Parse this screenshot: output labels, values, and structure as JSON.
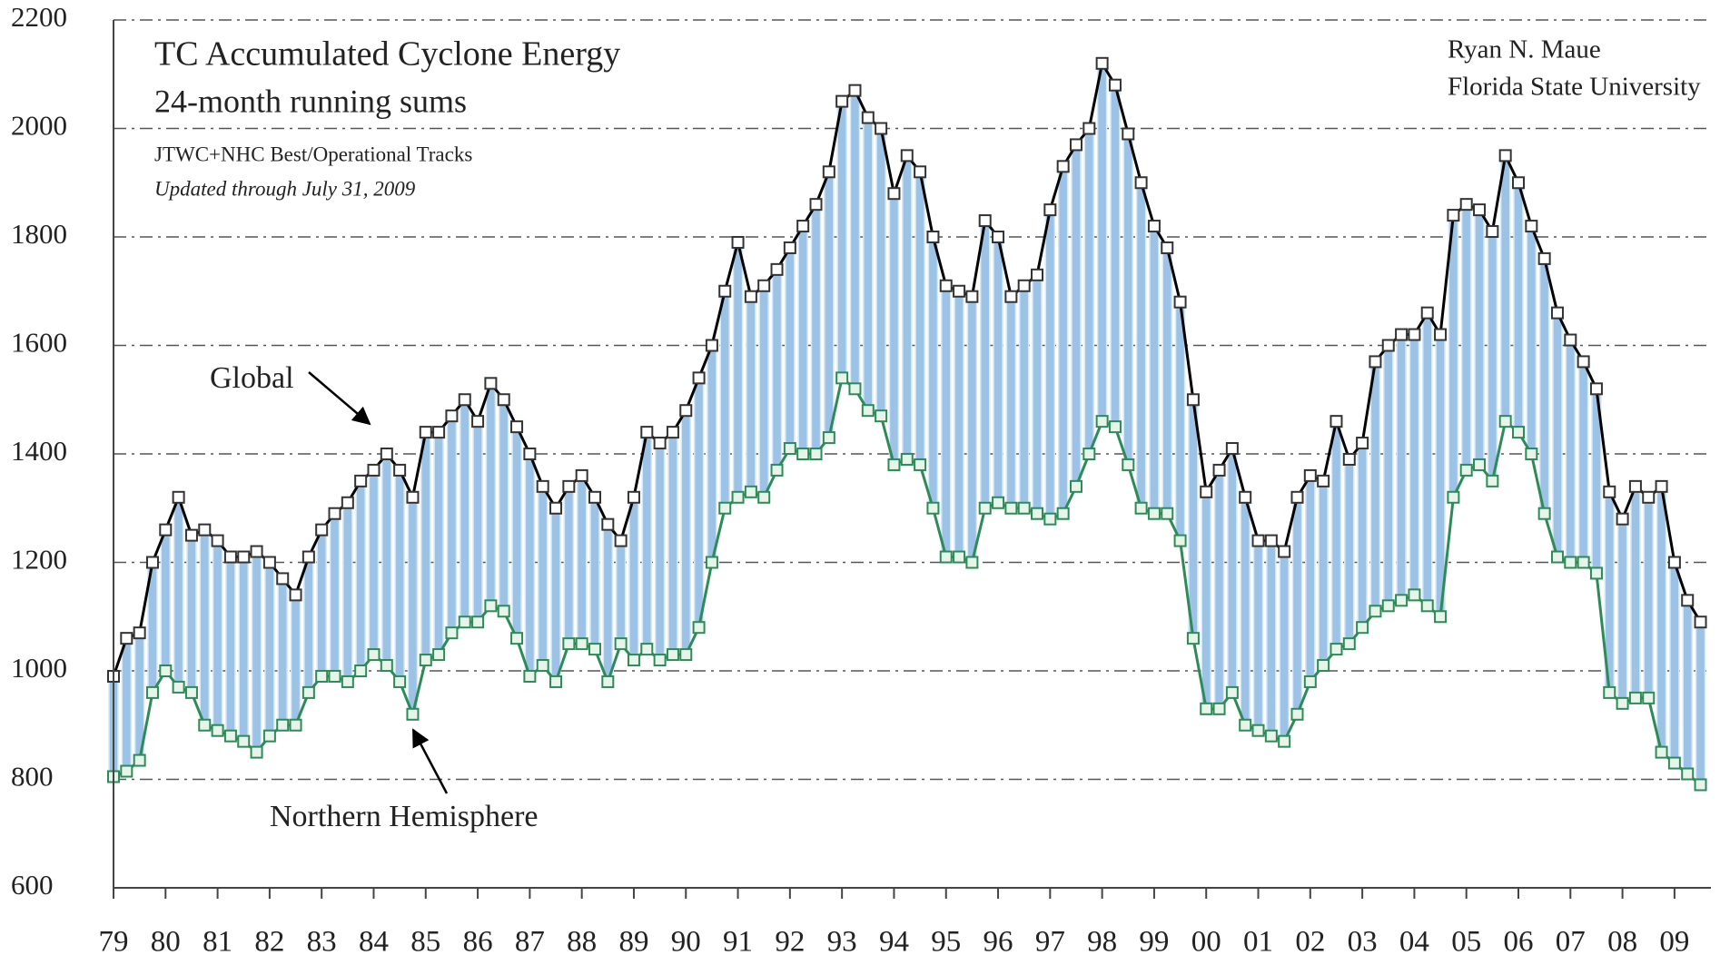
{
  "chart_data": {
    "type": "line",
    "title": "TC Accumulated Cyclone Energy",
    "subtitle": "24-month running sums",
    "notes": [
      "JTWC+NHC Best/Operational Tracks",
      "Updated through July 31, 2009"
    ],
    "author": [
      "Ryan N. Maue",
      "Florida State University"
    ],
    "annotations": [
      "Global",
      "Northern Hemisphere"
    ],
    "fill_color": "#9cc3e6",
    "grid": true,
    "xlim": [
      1979,
      2009.7
    ],
    "ylim": [
      600,
      2200
    ],
    "yticks": [
      600,
      800,
      1000,
      1200,
      1400,
      1600,
      1800,
      2000,
      2200
    ],
    "xticks": [
      {
        "value": 1979,
        "label": "79"
      },
      {
        "value": 1980,
        "label": "80"
      },
      {
        "value": 1981,
        "label": "81"
      },
      {
        "value": 1982,
        "label": "82"
      },
      {
        "value": 1983,
        "label": "83"
      },
      {
        "value": 1984,
        "label": "84"
      },
      {
        "value": 1985,
        "label": "85"
      },
      {
        "value": 1986,
        "label": "86"
      },
      {
        "value": 1987,
        "label": "87"
      },
      {
        "value": 1988,
        "label": "88"
      },
      {
        "value": 1989,
        "label": "89"
      },
      {
        "value": 1990,
        "label": "90"
      },
      {
        "value": 1991,
        "label": "91"
      },
      {
        "value": 1992,
        "label": "92"
      },
      {
        "value": 1993,
        "label": "93"
      },
      {
        "value": 1994,
        "label": "94"
      },
      {
        "value": 1995,
        "label": "95"
      },
      {
        "value": 1996,
        "label": "96"
      },
      {
        "value": 1997,
        "label": "97"
      },
      {
        "value": 1998,
        "label": "98"
      },
      {
        "value": 1999,
        "label": "99"
      },
      {
        "value": 2000,
        "label": "00"
      },
      {
        "value": 2001,
        "label": "01"
      },
      {
        "value": 2002,
        "label": "02"
      },
      {
        "value": 2003,
        "label": "03"
      },
      {
        "value": 2004,
        "label": "04"
      },
      {
        "value": 2005,
        "label": "05"
      },
      {
        "value": 2006,
        "label": "06"
      },
      {
        "value": 2007,
        "label": "07"
      },
      {
        "value": 2008,
        "label": "08"
      },
      {
        "value": 2009,
        "label": "09"
      }
    ],
    "x": [
      1979,
      1979.25,
      1979.5,
      1979.75,
      1980,
      1980.25,
      1980.5,
      1980.75,
      1981,
      1981.25,
      1981.5,
      1981.75,
      1982,
      1982.25,
      1982.5,
      1982.75,
      1983,
      1983.25,
      1983.5,
      1983.75,
      1984,
      1984.25,
      1984.5,
      1984.75,
      1985,
      1985.25,
      1985.5,
      1985.75,
      1986,
      1986.25,
      1986.5,
      1986.75,
      1987,
      1987.25,
      1987.5,
      1987.75,
      1988,
      1988.25,
      1988.5,
      1988.75,
      1989,
      1989.25,
      1989.5,
      1989.75,
      1990,
      1990.25,
      1990.5,
      1990.75,
      1991,
      1991.25,
      1991.5,
      1991.75,
      1992,
      1992.25,
      1992.5,
      1992.75,
      1993,
      1993.25,
      1993.5,
      1993.75,
      1994,
      1994.25,
      1994.5,
      1994.75,
      1995,
      1995.25,
      1995.5,
      1995.75,
      1996,
      1996.25,
      1996.5,
      1996.75,
      1997,
      1997.25,
      1997.5,
      1997.75,
      1998,
      1998.25,
      1998.5,
      1998.75,
      1999,
      1999.25,
      1999.5,
      1999.75,
      2000,
      2000.25,
      2000.5,
      2000.75,
      2001,
      2001.25,
      2001.5,
      2001.75,
      2002,
      2002.25,
      2002.5,
      2002.75,
      2003,
      2003.25,
      2003.5,
      2003.75,
      2004,
      2004.25,
      2004.5,
      2004.75,
      2005,
      2005.25,
      2005.5,
      2005.75,
      2006,
      2006.25,
      2006.5,
      2006.75,
      2007,
      2007.25,
      2007.5,
      2007.75,
      2008,
      2008.25,
      2008.5,
      2008.75,
      2009,
      2009.25,
      2009.5
    ],
    "series": [
      {
        "name": "Global",
        "color": "#000000",
        "marker_fill": "#ffffff",
        "values": [
          990,
          1060,
          1070,
          1200,
          1260,
          1320,
          1250,
          1260,
          1240,
          1210,
          1210,
          1220,
          1200,
          1170,
          1140,
          1210,
          1260,
          1290,
          1310,
          1350,
          1370,
          1400,
          1370,
          1320,
          1440,
          1440,
          1470,
          1500,
          1460,
          1530,
          1500,
          1450,
          1400,
          1340,
          1300,
          1340,
          1360,
          1320,
          1270,
          1240,
          1320,
          1440,
          1420,
          1440,
          1480,
          1540,
          1600,
          1700,
          1790,
          1690,
          1710,
          1740,
          1780,
          1820,
          1860,
          1920,
          2050,
          2070,
          2020,
          2000,
          1880,
          1950,
          1920,
          1800,
          1710,
          1700,
          1690,
          1830,
          1800,
          1690,
          1710,
          1730,
          1850,
          1930,
          1970,
          2000,
          2120,
          2080,
          1990,
          1900,
          1820,
          1780,
          1680,
          1500,
          1330,
          1370,
          1410,
          1320,
          1240,
          1240,
          1220,
          1320,
          1360,
          1350,
          1460,
          1390,
          1420,
          1570,
          1600,
          1620,
          1620,
          1660,
          1620,
          1840,
          1860,
          1850,
          1810,
          1950,
          1900,
          1820,
          1760,
          1660,
          1610,
          1570,
          1520,
          1330,
          1280,
          1340,
          1320,
          1340,
          1200,
          1130,
          1090
        ]
      },
      {
        "name": "Northern Hemisphere",
        "color": "#2e8b57",
        "marker_fill": "#e6f4ea",
        "values": [
          805,
          815,
          835,
          960,
          1000,
          970,
          960,
          900,
          890,
          880,
          870,
          850,
          880,
          900,
          900,
          960,
          990,
          990,
          980,
          1000,
          1030,
          1010,
          980,
          920,
          1020,
          1030,
          1070,
          1090,
          1090,
          1120,
          1110,
          1060,
          990,
          1010,
          980,
          1050,
          1050,
          1040,
          980,
          1050,
          1020,
          1040,
          1020,
          1030,
          1030,
          1080,
          1200,
          1300,
          1320,
          1330,
          1320,
          1370,
          1410,
          1400,
          1400,
          1430,
          1540,
          1520,
          1480,
          1470,
          1380,
          1390,
          1380,
          1300,
          1210,
          1210,
          1200,
          1300,
          1310,
          1300,
          1300,
          1290,
          1280,
          1290,
          1340,
          1400,
          1460,
          1450,
          1380,
          1300,
          1290,
          1290,
          1240,
          1060,
          930,
          930,
          960,
          900,
          890,
          880,
          870,
          920,
          980,
          1010,
          1040,
          1050,
          1080,
          1110,
          1120,
          1130,
          1140,
          1120,
          1100,
          1320,
          1370,
          1380,
          1350,
          1460,
          1440,
          1400,
          1290,
          1210,
          1200,
          1200,
          1180,
          960,
          940,
          950,
          950,
          850,
          830,
          810,
          790
        ]
      }
    ]
  }
}
